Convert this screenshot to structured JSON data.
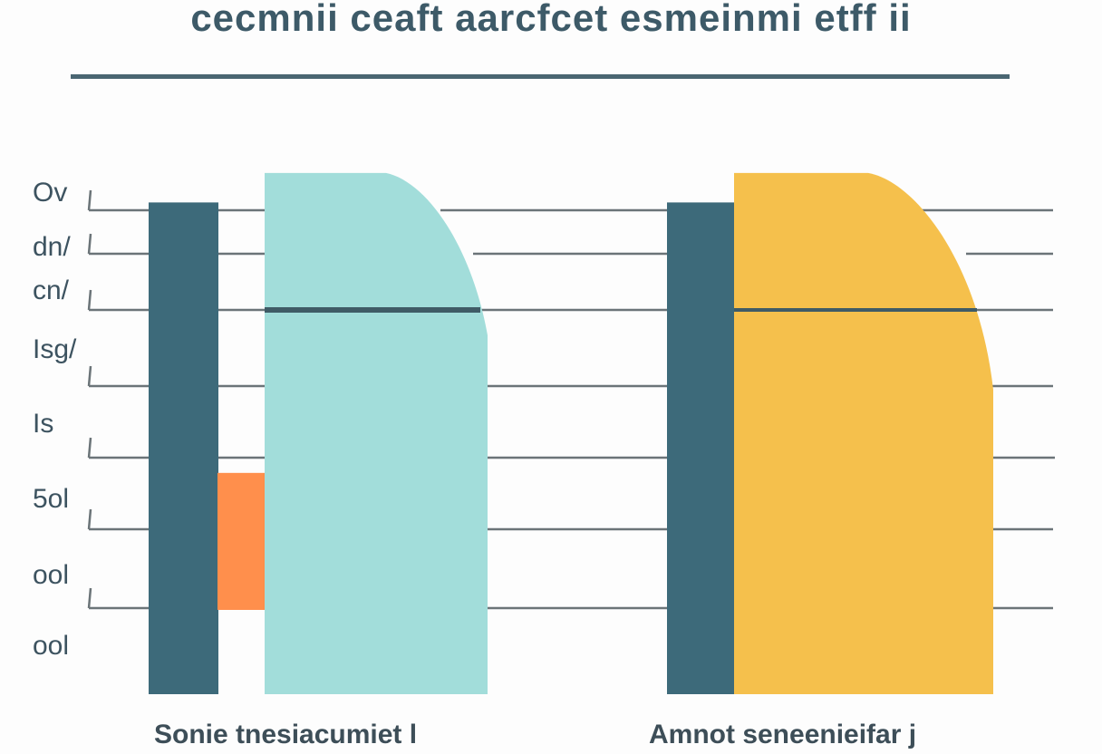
{
  "chart_data": {
    "type": "bar",
    "title": "cecmnii ceaft aarcfcet esmeinmi etff ii",
    "ytick_labels": [
      "Ov",
      "dn/",
      "cn/",
      "Isg/",
      "Is",
      "5ol",
      "ool",
      "ool"
    ],
    "categories": [
      "Sonie tnesiacumiet l",
      "Amnot seneenieifar j"
    ],
    "series": [
      {
        "color": "#3d6a7a",
        "values": [
          100,
          100
        ]
      },
      {
        "color": "#ff8f4c",
        "values": [
          45,
          null
        ]
      },
      {
        "color": "#a2ddda",
        "values": [
          106,
          null
        ]
      },
      {
        "color": "#f5c04c",
        "values": [
          null,
          106
        ]
      }
    ],
    "ylim": [
      0,
      115
    ],
    "grid": true,
    "colors": {
      "title": "#3d5a68",
      "grid": "#6b7478",
      "mid_line": "#3f5b66"
    }
  }
}
